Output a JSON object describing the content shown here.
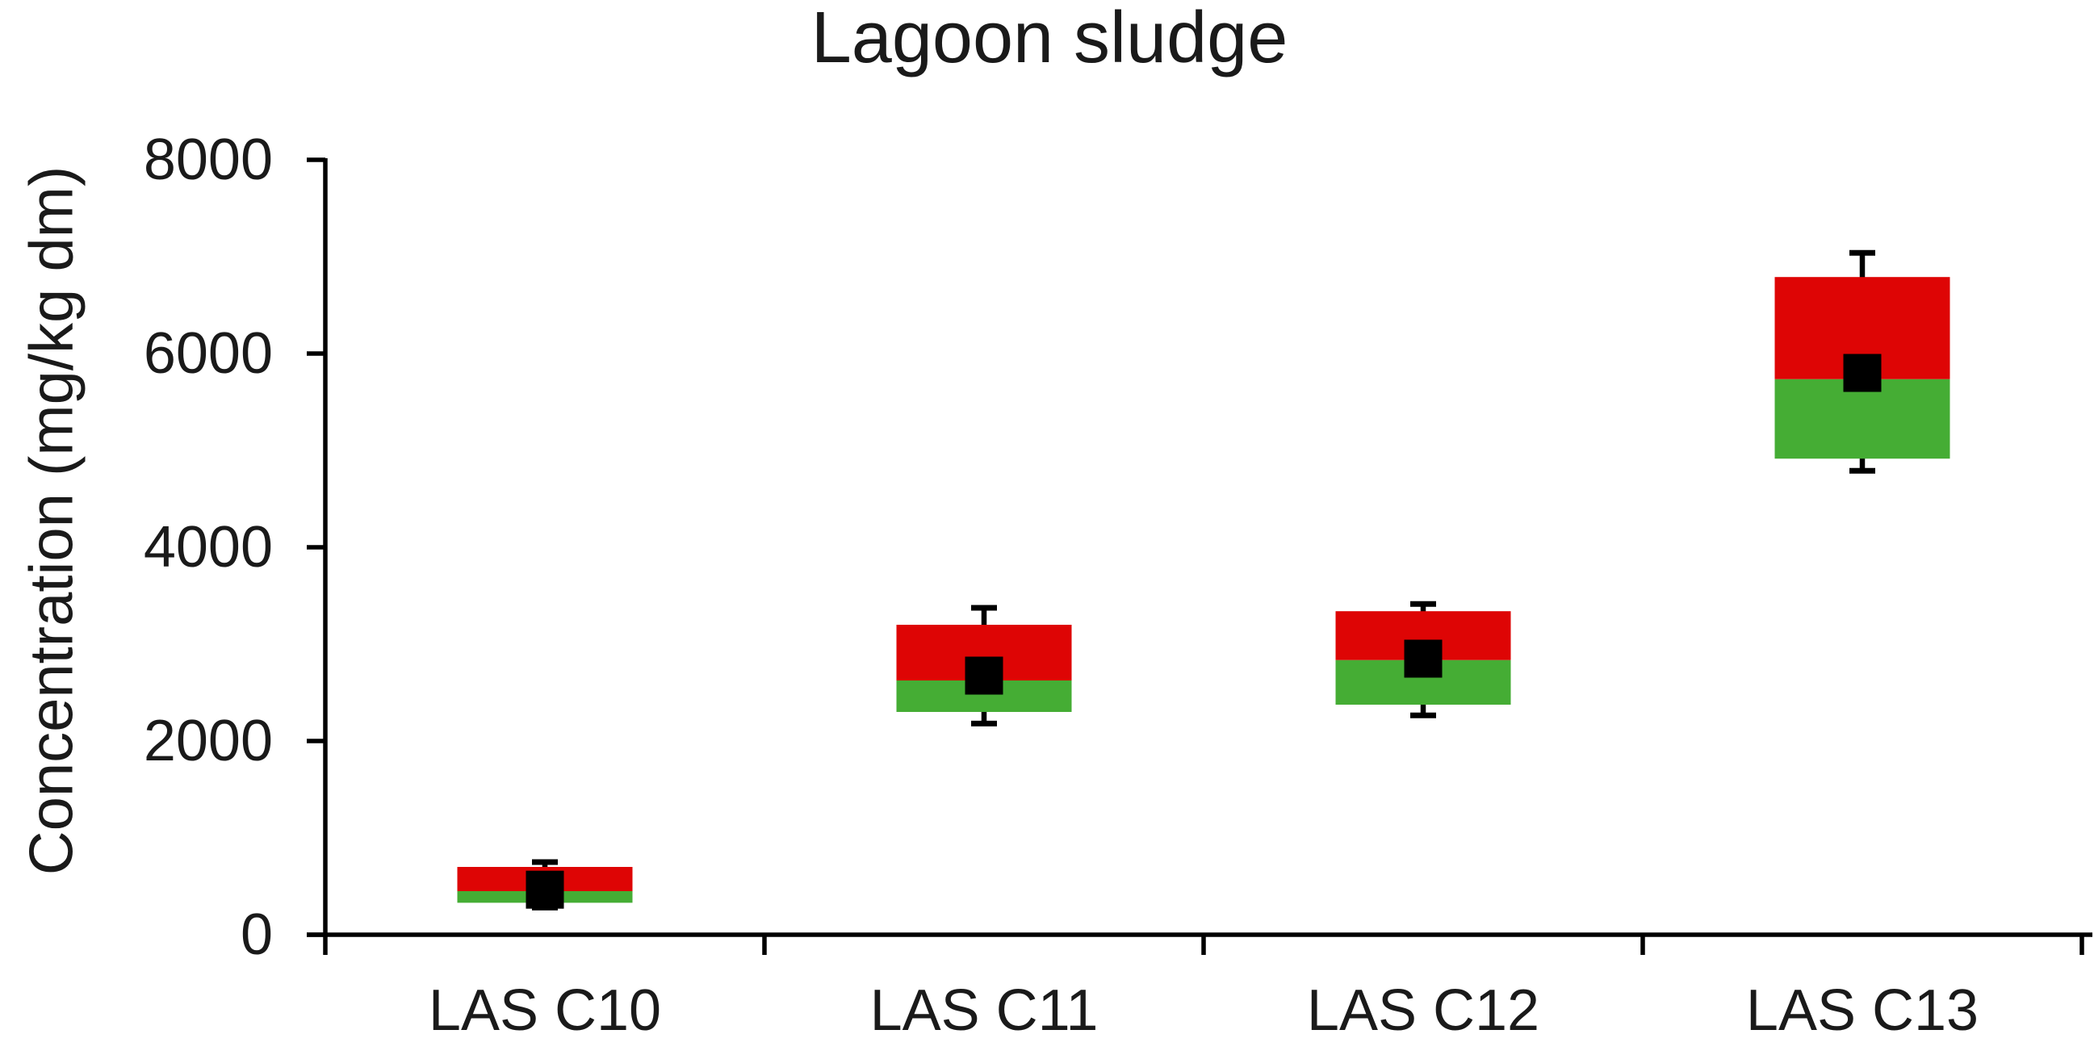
{
  "figure": {
    "background": "#ffffff"
  },
  "chart_data": {
    "type": "box",
    "title": "Lagoon sludge",
    "ylabel": "Concentration (mg/kg dm)",
    "xlabel": "",
    "ylim": [
      0,
      8000
    ],
    "yticks": [
      0,
      2000,
      4000,
      6000,
      8000
    ],
    "grid": false,
    "legend": false,
    "categories": [
      "LAS C10",
      "LAS C11",
      "LAS C12",
      "LAS C13"
    ],
    "boxes": [
      {
        "category": "LAS C10",
        "box_low": 330,
        "box_split": 450,
        "box_high": 700,
        "mean": 465,
        "whisker_low": 280,
        "whisker_high": 750
      },
      {
        "category": "LAS C11",
        "box_low": 2300,
        "box_split": 2625,
        "box_high": 3200,
        "mean": 2675,
        "whisker_low": 2180,
        "whisker_high": 3375
      },
      {
        "category": "LAS C12",
        "box_low": 2375,
        "box_split": 2835,
        "box_high": 3340,
        "mean": 2850,
        "whisker_low": 2265,
        "whisker_high": 3415
      },
      {
        "category": "LAS C13",
        "box_low": 4915,
        "box_split": 5735,
        "box_high": 6790,
        "mean": 5800,
        "whisker_low": 4790,
        "whisker_high": 7040
      }
    ],
    "colors": {
      "upper_segment": "#de0505",
      "lower_segment": "#45ad34",
      "mean_marker": "#000000",
      "whisker": "#000000",
      "axis": "#000000"
    }
  }
}
